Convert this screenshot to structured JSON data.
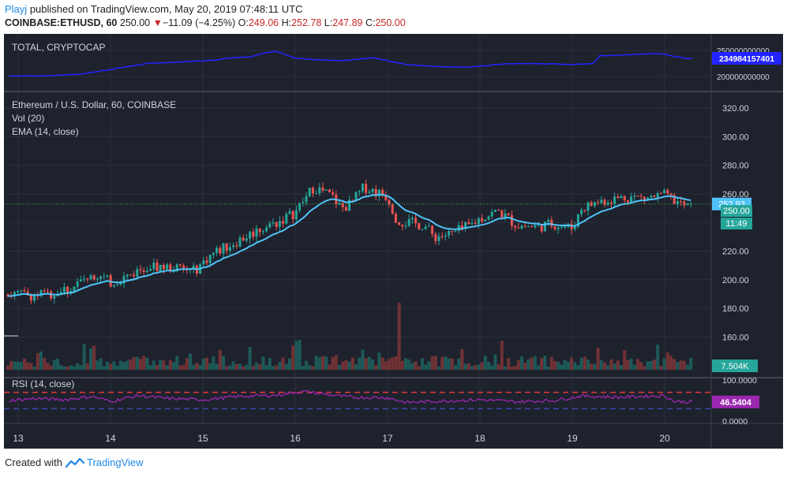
{
  "header": {
    "user": "Playj",
    "published_text": "published on TradingView.com, May 20, 2019 07:48:11 UTC",
    "symbol": "COINBASE:ETHUSD, 60",
    "last_price": "250.00",
    "change_arrow": "▼",
    "change": "−11.09 (−4.25%)",
    "o_label": "O:",
    "o_value": "249.06",
    "h_label": "H:",
    "h_value": "252.78",
    "l_label": "L:",
    "l_value": "247.89",
    "c_label": "C:",
    "c_value": "250.00"
  },
  "footer": {
    "created_with": "Created with",
    "brand": "TradingView"
  },
  "colors": {
    "background": "#1e222d",
    "grid": "#2c3040",
    "separator": "#3e4350",
    "up": "#26a69a",
    "down": "#ef5350",
    "ema": "#4fc3f7",
    "total": "#2323ff",
    "rsi": "#9c27b0",
    "rsi_upper": "#e53935",
    "rsi_lower": "#3949ab",
    "axis_text": "#d1d4dc",
    "badge_text": "#ffffff"
  },
  "chart_data": [
    {
      "type": "line",
      "title": "TOTAL, CRYPTOCAP",
      "series": [
        {
          "name": "TOTAL, CRYPTOCAP",
          "x": [
            0,
            0.5,
            1,
            1.5,
            2,
            2.5,
            3,
            3.3,
            3.6,
            3.8,
            4.0,
            4.1,
            4.3,
            4.6,
            5.0,
            5.5,
            6.0,
            6.5,
            7.0,
            7.5,
            7.9,
            8.3,
            8.6,
            8.9,
            9.0,
            9.3,
            9.5,
            9.8,
            10.0,
            10.3
          ],
          "values": [
            201000000000,
            201500000000,
            205000000000,
            215000000000,
            225000000000,
            228000000000,
            231000000000,
            236000000000,
            238000000000,
            245000000000,
            248000000000,
            244000000000,
            235000000000,
            232000000000,
            230000000000,
            236000000000,
            223000000000,
            219000000000,
            218000000000,
            224000000000,
            225000000000,
            224000000000,
            223000000000,
            225000000000,
            240000000000,
            241000000000,
            242000000000,
            244000000000,
            243000000000,
            234984157401
          ]
        }
      ],
      "y_ticks": [
        "250000000000",
        "200000000000"
      ],
      "last_value_badge": "234984157401"
    },
    {
      "type": "candlestick",
      "title": "Ethereum / U.S. Dollar, 60, COINBASE",
      "indicators": [
        "Vol (20)",
        "EMA (14, close)"
      ],
      "ylim": [
        140,
        330
      ],
      "y_ticks": [
        "320.00",
        "300.00",
        "280.00",
        "260.00",
        "240.00",
        "220.00",
        "200.00",
        "180.00",
        "160.00"
      ],
      "x_ticks": [
        "13",
        "14",
        "15",
        "16",
        "17",
        "18",
        "19",
        "20"
      ],
      "x_tick_values": [
        0,
        1,
        2,
        3,
        4,
        5,
        6,
        7
      ],
      "price_path": {
        "x": [
          -0.1,
          0.3,
          0.6,
          0.8,
          1.0,
          1.2,
          1.4,
          1.7,
          1.9,
          2.1,
          2.4,
          2.6,
          2.8,
          3.0,
          3.1,
          3.2,
          3.4,
          3.5,
          3.6,
          3.75,
          3.85,
          4.0,
          4.1,
          4.2,
          4.4,
          4.5,
          4.7,
          4.9,
          5.0,
          5.2,
          5.4,
          5.6,
          5.8,
          6.0,
          6.1,
          6.3,
          6.6,
          6.8,
          7.0,
          7.2,
          7.3
        ],
        "values": [
          190,
          189,
          195,
          205,
          198,
          203,
          210,
          208,
          206,
          218,
          228,
          235,
          240,
          247,
          256,
          265,
          258,
          250,
          253,
          265,
          262,
          258,
          242,
          240,
          238,
          230,
          232,
          238,
          243,
          248,
          238,
          237,
          239,
          236,
          250,
          255,
          258,
          257,
          259,
          252,
          250
        ]
      },
      "last_price_badge": "250.00",
      "countdown_badge": "11:49",
      "crosshair_badge": "252.93",
      "volume_badge": "7.504K"
    },
    {
      "type": "line",
      "title": "RSI (14, close)",
      "ylim": [
        0,
        100
      ],
      "y_ticks": [
        "100.0000",
        "0.0000"
      ],
      "bands": [
        70,
        30
      ],
      "series": [
        {
          "name": "RSI (14, close)",
          "x": [
            -0.1,
            0.2,
            0.5,
            0.8,
            1.0,
            1.3,
            1.6,
            2.0,
            2.4,
            2.8,
            3.0,
            3.1,
            3.3,
            3.6,
            4.0,
            4.2,
            4.5,
            5.0,
            5.4,
            5.8,
            6.1,
            6.5,
            7.0,
            7.1,
            7.3
          ],
          "values": [
            50,
            55,
            52,
            60,
            48,
            62,
            55,
            52,
            60,
            63,
            70,
            72,
            66,
            58,
            57,
            45,
            48,
            52,
            47,
            50,
            61,
            58,
            62,
            48,
            46.5404
          ]
        }
      ],
      "last_value_badge": "46.5404"
    }
  ]
}
